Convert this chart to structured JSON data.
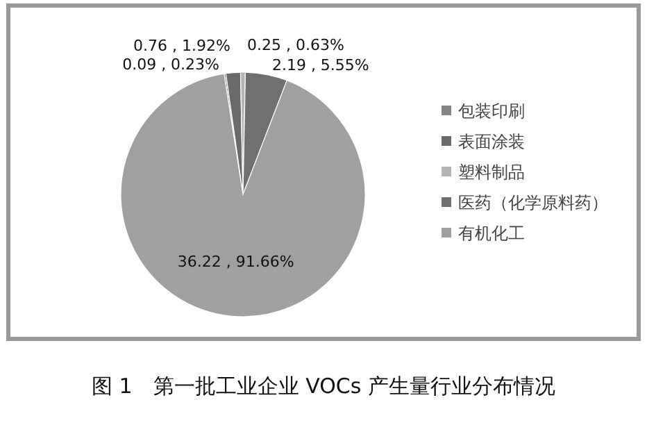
{
  "chart_data": {
    "type": "pie",
    "title": "图 1　第一批工业企业 VOCs 产生量行业分布情况",
    "categories": [
      "包装印刷",
      "表面涂装",
      "塑料制品",
      "医药（化学原料药）",
      "有机化工"
    ],
    "values": [
      0.09,
      0.76,
      0.25,
      2.19,
      36.22
    ],
    "value_labels": [
      "0.09 , 0.23%",
      "0.76 , 1.92%",
      "0.25 , 0.63%",
      "2.19 , 5.55%",
      "36.22 , 91.66%"
    ],
    "colors": [
      "#858585",
      "#6a6a6a",
      "#b4b4b4",
      "#707070",
      "#a0a0a0"
    ],
    "legend": "right"
  }
}
